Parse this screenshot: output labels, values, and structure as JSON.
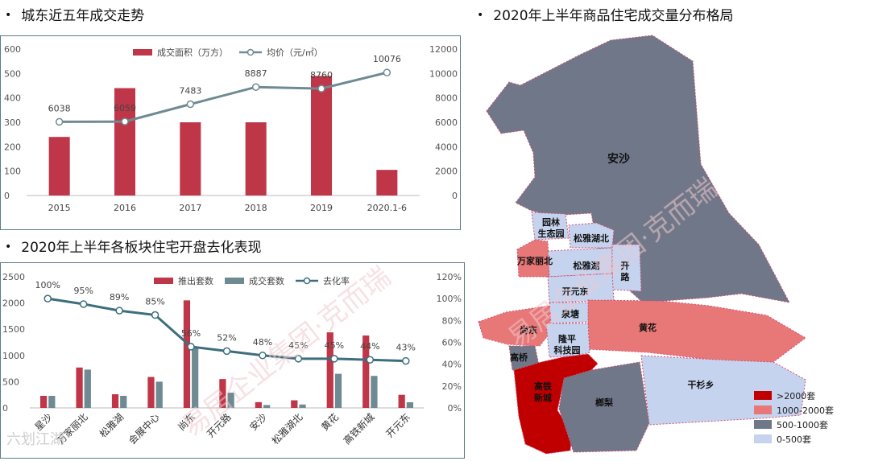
{
  "titles": {
    "chart1": "城东近五年成交走势",
    "chart2": "2020年上半年各板块住宅开盘去化表现",
    "map": "2020年上半年商品住宅成交量分布格局"
  },
  "chart_data": [
    {
      "type": "bar",
      "title": "城东近五年成交走势",
      "categories": [
        "2015",
        "2016",
        "2017",
        "2018",
        "2019",
        "2020.1-6"
      ],
      "series": [
        {
          "name": "成交面积（万方）",
          "kind": "bar",
          "axis": "left",
          "color": "#bf3649",
          "values": [
            240,
            440,
            300,
            300,
            490,
            105
          ]
        },
        {
          "name": "均价（元/㎡）",
          "kind": "line",
          "axis": "right",
          "color": "#6e8a92",
          "values": [
            6038,
            6059,
            7483,
            8887,
            8760,
            10076
          ]
        }
      ],
      "y_left": {
        "min": 0,
        "max": 600,
        "ticks": [
          "0",
          "100",
          "200",
          "300",
          "400",
          "500",
          "600"
        ]
      },
      "y_right": {
        "min": 0,
        "max": 12000,
        "ticks": [
          "0",
          "2000",
          "4000",
          "6000",
          "8000",
          "10000",
          "12000"
        ]
      },
      "data_labels": [
        "6038",
        "6059",
        "7483",
        "8887",
        "8760",
        "10076"
      ],
      "legend": "top-center"
    },
    {
      "type": "bar",
      "title": "2020年上半年各板块住宅开盘去化表现",
      "categories": [
        "星沙",
        "万家丽北",
        "松雅湖",
        "会展中心",
        "尚东",
        "开元路",
        "安沙",
        "松雅湖北",
        "黄花",
        "高铁新城",
        "开元东"
      ],
      "series": [
        {
          "name": "推出套数",
          "kind": "bar",
          "axis": "left",
          "color": "#bf3649",
          "values": [
            230,
            770,
            260,
            590,
            2050,
            550,
            110,
            145,
            1440,
            1380,
            250
          ]
        },
        {
          "name": "成交套数",
          "kind": "bar",
          "axis": "left",
          "color": "#6e8a92",
          "values": [
            230,
            730,
            230,
            500,
            1150,
            290,
            55,
            65,
            650,
            610,
            108
          ]
        },
        {
          "name": "去化率",
          "kind": "line",
          "axis": "right",
          "color": "#3d6e7e",
          "values": [
            100,
            95,
            89,
            85,
            56,
            52,
            48,
            45,
            45,
            44,
            43
          ]
        }
      ],
      "y_left": {
        "min": 0,
        "max": 2500,
        "ticks": [
          "0",
          "500",
          "1000",
          "1500",
          "2000",
          "2500"
        ]
      },
      "y_right": {
        "min": 0,
        "max": 120,
        "ticks": [
          "0%",
          "20%",
          "40%",
          "60%",
          "80%",
          "100%",
          "120%"
        ]
      },
      "data_labels": [
        "100%",
        "95%",
        "89%",
        "85%",
        "56%",
        "52%",
        "48%",
        "45%",
        "45%",
        "44%",
        "43%"
      ],
      "legend": "top-right"
    }
  ],
  "map": {
    "regions": [
      {
        "key": "ansha",
        "name": "安沙",
        "level": "500-1000套"
      },
      {
        "key": "yuanlin",
        "name": "园林生态园",
        "line1": "园林",
        "line2": "生态园",
        "level": "0-500套"
      },
      {
        "key": "songyahubei",
        "name": "松雅湖北",
        "level": "0-500套"
      },
      {
        "key": "wanjialibei",
        "name": "万家丽北",
        "level": "1000-2000套"
      },
      {
        "key": "songyahu",
        "name": "松雅湖",
        "level": "0-500套"
      },
      {
        "key": "kailu",
        "name": "开路",
        "line1": "开",
        "line2": "路",
        "level": "0-500套"
      },
      {
        "key": "kaiyuandong",
        "name": "开元东",
        "level": "0-500套"
      },
      {
        "key": "quantang",
        "name": "泉塘",
        "level": "0-500套"
      },
      {
        "key": "huanghua",
        "name": "黄花",
        "level": "1000-2000套"
      },
      {
        "key": "shangdong",
        "name": "尚东",
        "level": "1000-2000套"
      },
      {
        "key": "longping",
        "name": "隆平科技园",
        "line1": "隆平",
        "line2": "科技园",
        "level": "0-500套"
      },
      {
        "key": "gaoqiao",
        "name": "高桥",
        "level": "500-1000套"
      },
      {
        "key": "gaotie",
        "name": "高铁新城",
        "line1": "高铁",
        "line2": "新城",
        "level": ">2000套"
      },
      {
        "key": "langli",
        "name": "榔梨",
        "level": "500-1000套"
      },
      {
        "key": "ganshan",
        "name": "干杉乡",
        "level": "0-500套"
      }
    ],
    "legend": [
      {
        "label": ">2000套",
        "color": "#c00000"
      },
      {
        "label": "1000-2000套",
        "color": "#e87878"
      },
      {
        "label": "500-1000套",
        "color": "#6f7788"
      },
      {
        "label": "0-500套",
        "color": "#c5d3ee"
      }
    ]
  },
  "watermark": {
    "text": "易居企业集团·克而瑞",
    "brand": "六划江湖"
  }
}
